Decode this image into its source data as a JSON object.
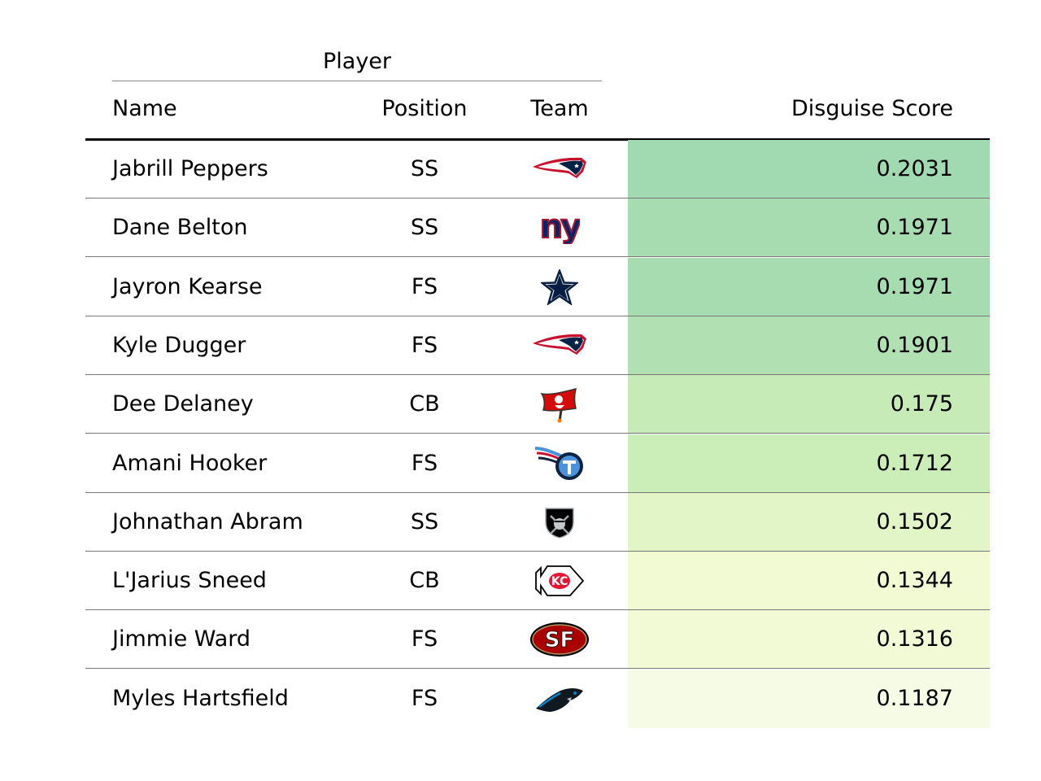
{
  "chart_data": {
    "type": "table",
    "group_header": "Player",
    "columns": [
      "Name",
      "Position",
      "Team",
      "Disguise Score"
    ],
    "rows": [
      {
        "name": "Jabrill Peppers",
        "position": "SS",
        "team_logo": "patriots-logo",
        "score": "0.2031",
        "color": "#a1dab0"
      },
      {
        "name": "Dane Belton",
        "position": "SS",
        "team_logo": "giants-logo",
        "score": "0.1971",
        "color": "#a6dcb0"
      },
      {
        "name": "Jayron Kearse",
        "position": "FS",
        "team_logo": "cowboys-logo",
        "score": "0.1971",
        "color": "#a6dcb0"
      },
      {
        "name": "Kyle Dugger",
        "position": "FS",
        "team_logo": "patriots-logo",
        "score": "0.1901",
        "color": "#b1e1b3"
      },
      {
        "name": "Dee Delaney",
        "position": "CB",
        "team_logo": "buccaneers-logo",
        "score": "0.175",
        "color": "#c7ebb6"
      },
      {
        "name": "Amani Hooker",
        "position": "FS",
        "team_logo": "titans-logo",
        "score": "0.1712",
        "color": "#cbedb7"
      },
      {
        "name": "Johnathan Abram",
        "position": "SS",
        "team_logo": "raiders-logo",
        "score": "0.1502",
        "color": "#e1f5c7"
      },
      {
        "name": "L'Jarius Sneed",
        "position": "CB",
        "team_logo": "chiefs-logo",
        "score": "0.1344",
        "color": "#f1fad3"
      },
      {
        "name": "Jimmie Ward",
        "position": "FS",
        "team_logo": "49ers-logo",
        "score": "0.1316",
        "color": "#f2fad5"
      },
      {
        "name": "Myles Hartsfield",
        "position": "FS",
        "team_logo": "panthers-logo",
        "score": "0.1187",
        "color": "#f6fbe6"
      }
    ]
  }
}
